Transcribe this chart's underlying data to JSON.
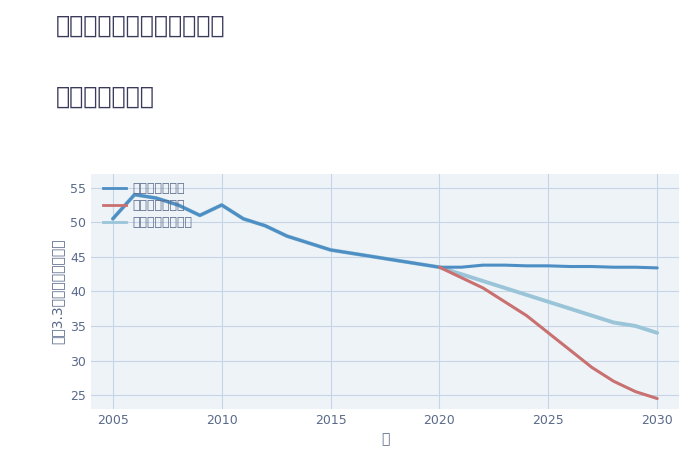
{
  "title_line1": "兵庫県姫路市北平野台町の",
  "title_line2": "土地の価格推移",
  "xlabel": "年",
  "ylabel": "平（3.3㎡）単価（万円）",
  "background_color": "#ffffff",
  "plot_background_color": "#eef3f8",
  "grid_color": "#c5d5e5",
  "series": [
    {
      "label": "グッドシナリオ",
      "color": "#4d8ec4",
      "linewidth": 2.2,
      "x": [
        2005,
        2006,
        2007,
        2008,
        2009,
        2010,
        2011,
        2012,
        2013,
        2014,
        2015,
        2016,
        2017,
        2018,
        2019,
        2020,
        2021,
        2022,
        2023,
        2024,
        2025,
        2026,
        2027,
        2028,
        2029,
        2030
      ],
      "y": [
        50.5,
        54.0,
        53.5,
        52.5,
        51.0,
        52.5,
        50.5,
        49.5,
        48.0,
        47.0,
        46.0,
        45.5,
        45.0,
        44.5,
        44.0,
        43.5,
        43.5,
        43.8,
        43.8,
        43.7,
        43.7,
        43.6,
        43.6,
        43.5,
        43.5,
        43.4
      ]
    },
    {
      "label": "バッドシナリオ",
      "color": "#c97070",
      "linewidth": 2.2,
      "x": [
        2020,
        2021,
        2022,
        2023,
        2024,
        2025,
        2026,
        2027,
        2028,
        2029,
        2030
      ],
      "y": [
        43.5,
        42.0,
        40.5,
        38.5,
        36.5,
        34.0,
        31.5,
        29.0,
        27.0,
        25.5,
        24.5
      ]
    },
    {
      "label": "ノーマルシナリオ",
      "color": "#9ac5d8",
      "linewidth": 2.8,
      "x": [
        2005,
        2006,
        2007,
        2008,
        2009,
        2010,
        2011,
        2012,
        2013,
        2014,
        2015,
        2016,
        2017,
        2018,
        2019,
        2020,
        2021,
        2022,
        2023,
        2024,
        2025,
        2026,
        2027,
        2028,
        2029,
        2030
      ],
      "y": [
        50.5,
        54.0,
        53.5,
        52.5,
        51.0,
        52.5,
        50.5,
        49.5,
        48.0,
        47.0,
        46.0,
        45.5,
        45.0,
        44.5,
        44.0,
        43.5,
        42.5,
        41.5,
        40.5,
        39.5,
        38.5,
        37.5,
        36.5,
        35.5,
        35.0,
        34.0
      ]
    }
  ],
  "xlim": [
    2004.0,
    2031.0
  ],
  "ylim": [
    23,
    57
  ],
  "xticks": [
    2005,
    2010,
    2015,
    2020,
    2025,
    2030
  ],
  "yticks": [
    25,
    30,
    35,
    40,
    45,
    50,
    55
  ],
  "title_fontsize": 17,
  "axis_fontsize": 10,
  "tick_fontsize": 9,
  "legend_fontsize": 9,
  "title_color": "#3a3a5a",
  "axis_label_color": "#5a6a8a",
  "tick_color": "#5a6a8a"
}
